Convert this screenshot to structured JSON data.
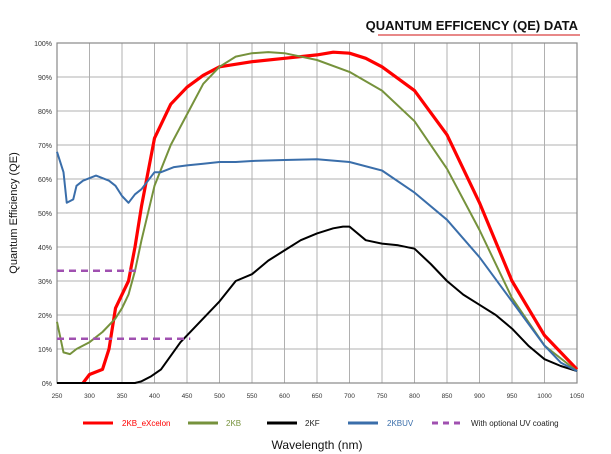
{
  "chart_data": {
    "type": "line",
    "title": "QUANTUM EFFICENCY (QE) DATA",
    "xlabel": "Wavelength (nm)",
    "ylabel": "Quantum Efficiency (QE)",
    "xlim": [
      250,
      1050
    ],
    "ylim": [
      0,
      100
    ],
    "xticks": [
      "250",
      "300",
      "350",
      "400",
      "450",
      "500",
      "550",
      "600",
      "650",
      "700",
      "750",
      "800",
      "850",
      "900",
      "950",
      "1000",
      "1050"
    ],
    "yticks": [
      "0%",
      "10%",
      "20%",
      "30%",
      "40%",
      "50%",
      "60%",
      "70%",
      "80%",
      "90%",
      "100%"
    ],
    "grid": true,
    "legend_position": "bottom",
    "series": [
      {
        "name": "2KB_eXcelon",
        "color": "#ff0000",
        "style": "solid",
        "points": [
          [
            290,
            0
          ],
          [
            300,
            2.5
          ],
          [
            320,
            4
          ],
          [
            330,
            10
          ],
          [
            340,
            22
          ],
          [
            350,
            26
          ],
          [
            360,
            30
          ],
          [
            370,
            40
          ],
          [
            380,
            52
          ],
          [
            390,
            62
          ],
          [
            400,
            72
          ],
          [
            425,
            82
          ],
          [
            450,
            87
          ],
          [
            475,
            90.5
          ],
          [
            500,
            93
          ],
          [
            550,
            94.5
          ],
          [
            600,
            95.5
          ],
          [
            650,
            96.5
          ],
          [
            675,
            97.3
          ],
          [
            700,
            97
          ],
          [
            725,
            95.5
          ],
          [
            750,
            93
          ],
          [
            800,
            86
          ],
          [
            850,
            73
          ],
          [
            900,
            53
          ],
          [
            950,
            30
          ],
          [
            1000,
            14
          ],
          [
            1050,
            4
          ]
        ]
      },
      {
        "name": "2KB",
        "color": "#76923c",
        "style": "solid",
        "points": [
          [
            250,
            18
          ],
          [
            260,
            9
          ],
          [
            270,
            8.5
          ],
          [
            280,
            10
          ],
          [
            300,
            12
          ],
          [
            320,
            15
          ],
          [
            340,
            19
          ],
          [
            350,
            22
          ],
          [
            360,
            26
          ],
          [
            370,
            33
          ],
          [
            380,
            42
          ],
          [
            400,
            58
          ],
          [
            425,
            70
          ],
          [
            450,
            79
          ],
          [
            475,
            88
          ],
          [
            500,
            93
          ],
          [
            525,
            96
          ],
          [
            550,
            97
          ],
          [
            575,
            97.3
          ],
          [
            600,
            97
          ],
          [
            650,
            95
          ],
          [
            700,
            91.5
          ],
          [
            750,
            86
          ],
          [
            800,
            77
          ],
          [
            850,
            63
          ],
          [
            900,
            45
          ],
          [
            950,
            25
          ],
          [
            1000,
            11
          ],
          [
            1050,
            3.5
          ]
        ]
      },
      {
        "name": "2KF",
        "color": "#000000",
        "style": "solid",
        "points": [
          [
            250,
            0
          ],
          [
            370,
            0
          ],
          [
            380,
            0.5
          ],
          [
            395,
            2
          ],
          [
            410,
            4
          ],
          [
            425,
            8
          ],
          [
            440,
            12
          ],
          [
            450,
            14
          ],
          [
            475,
            19
          ],
          [
            500,
            24
          ],
          [
            525,
            30
          ],
          [
            550,
            32
          ],
          [
            575,
            36
          ],
          [
            600,
            39
          ],
          [
            625,
            42
          ],
          [
            650,
            44
          ],
          [
            675,
            45.5
          ],
          [
            690,
            46
          ],
          [
            700,
            46
          ],
          [
            725,
            42
          ],
          [
            750,
            41
          ],
          [
            775,
            40.5
          ],
          [
            800,
            39.5
          ],
          [
            825,
            35
          ],
          [
            850,
            30
          ],
          [
            875,
            26
          ],
          [
            900,
            23
          ],
          [
            925,
            20
          ],
          [
            950,
            16
          ],
          [
            975,
            11
          ],
          [
            1000,
            7
          ],
          [
            1025,
            5
          ],
          [
            1050,
            3.5
          ]
        ]
      },
      {
        "name": "2KBUV",
        "color": "#3a6eaa",
        "style": "solid",
        "points": [
          [
            250,
            68
          ],
          [
            260,
            62
          ],
          [
            265,
            53
          ],
          [
            275,
            54
          ],
          [
            280,
            58
          ],
          [
            290,
            59.5
          ],
          [
            310,
            61
          ],
          [
            330,
            59.5
          ],
          [
            340,
            58
          ],
          [
            350,
            55
          ],
          [
            360,
            53
          ],
          [
            370,
            55.5
          ],
          [
            380,
            57
          ],
          [
            390,
            59.5
          ],
          [
            400,
            62
          ],
          [
            410,
            62
          ],
          [
            430,
            63.5
          ],
          [
            450,
            64
          ],
          [
            475,
            64.5
          ],
          [
            500,
            65
          ],
          [
            525,
            65
          ],
          [
            550,
            65.3
          ],
          [
            600,
            65.6
          ],
          [
            650,
            65.8
          ],
          [
            700,
            65
          ],
          [
            750,
            62.5
          ],
          [
            800,
            56
          ],
          [
            850,
            48
          ],
          [
            900,
            37
          ],
          [
            950,
            24
          ],
          [
            1000,
            11
          ],
          [
            1025,
            6
          ],
          [
            1050,
            3.5
          ]
        ]
      },
      {
        "name": "With optional UV coating",
        "color": "#a050b0",
        "style": "dashed",
        "segments": [
          [
            [
              250,
              33
            ],
            [
              375,
              33
            ]
          ],
          [
            [
              250,
              13
            ],
            [
              455,
              13
            ]
          ]
        ]
      }
    ]
  }
}
